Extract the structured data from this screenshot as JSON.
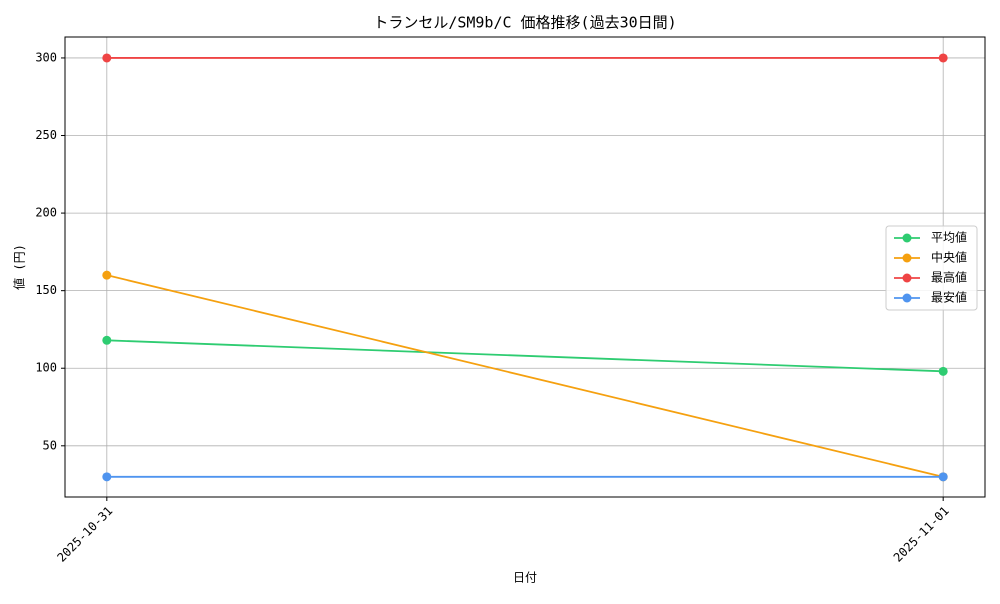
{
  "chart_data": {
    "type": "line",
    "title": "トランセル/SM9b/C 価格推移(過去30日間)",
    "x_label": "日付",
    "y_label": "値 (円)",
    "categories": [
      "2025-10-31",
      "2025-11-01"
    ],
    "series": [
      {
        "name": "平均値",
        "color": "#2ecc71",
        "values": [
          118,
          98
        ]
      },
      {
        "name": "中央値",
        "color": "#f5a00f",
        "values": [
          160,
          30
        ]
      },
      {
        "name": "最高値",
        "color": "#ef4444",
        "values": [
          300,
          300
        ]
      },
      {
        "name": "最安値",
        "color": "#4f94ef",
        "values": [
          30,
          30
        ]
      }
    ],
    "ylim": [
      17,
      313.5
    ],
    "yticks": [
      50,
      100,
      150,
      200,
      250,
      300
    ],
    "grid": true,
    "legend": "right"
  }
}
